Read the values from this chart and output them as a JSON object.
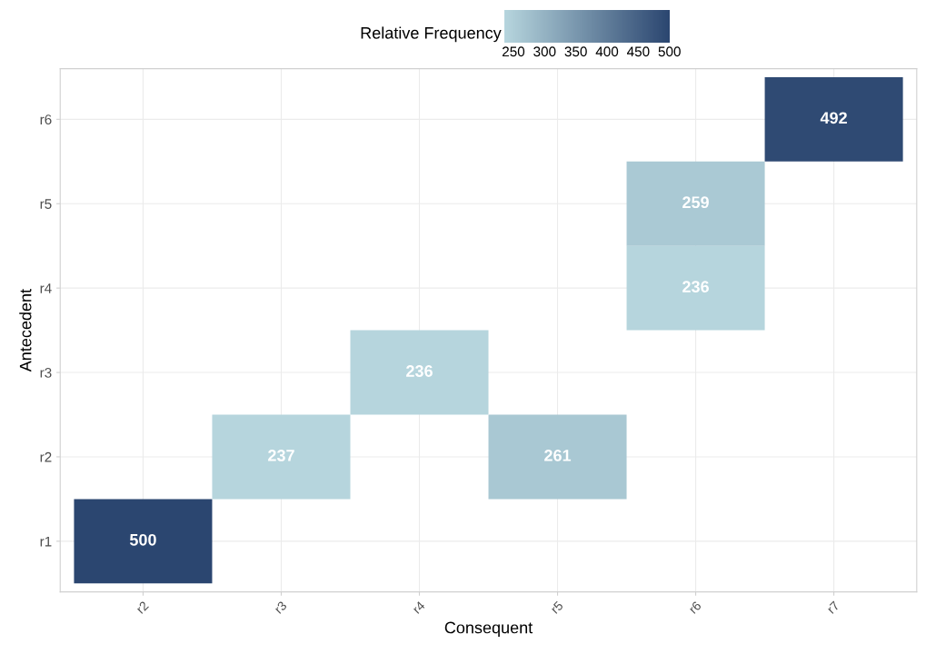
{
  "chart_data": {
    "type": "heatmap",
    "xlabel": "Consequent",
    "ylabel": "Antecedent",
    "clabel": "Relative Frequency",
    "categories": [
      "r2",
      "r3",
      "r4",
      "r5",
      "r6",
      "r7"
    ],
    "y_categories": [
      "r6",
      "r5",
      "r4",
      "r3",
      "r2",
      "r1"
    ],
    "cells": [
      [
        null,
        null,
        null,
        null,
        null,
        492
      ],
      [
        null,
        null,
        null,
        null,
        259,
        null
      ],
      [
        null,
        null,
        null,
        null,
        236,
        null
      ],
      [
        null,
        null,
        236,
        null,
        null,
        null
      ],
      [
        null,
        237,
        null,
        261,
        null,
        null
      ],
      [
        500,
        null,
        null,
        null,
        null,
        null
      ]
    ],
    "colors": [
      "#b6d5dd",
      "#2b4670"
    ],
    "clim": [
      236,
      500
    ],
    "cticks": [
      250,
      300,
      350,
      400,
      450,
      500
    ],
    "data_labels": true,
    "grid": true
  }
}
